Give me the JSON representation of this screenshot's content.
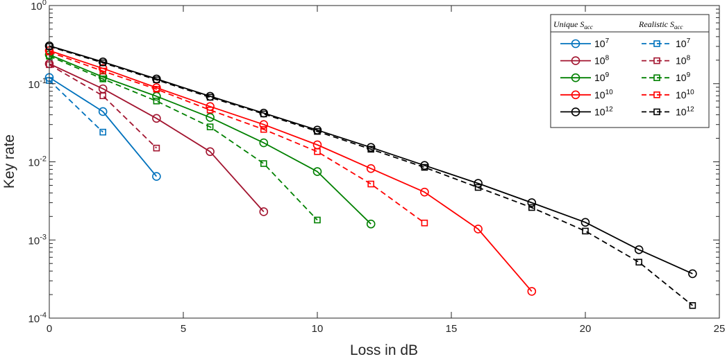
{
  "chart_data": {
    "type": "line",
    "title": "",
    "xlabel": "Loss in dB",
    "ylabel": "Key rate",
    "xscale": "linear",
    "yscale": "log",
    "xlim": [
      0,
      25
    ],
    "ylim": [
      0.0001,
      1
    ],
    "xticks": [
      0,
      5,
      10,
      15,
      20,
      25
    ],
    "xtick_labels": [
      "0",
      "5",
      "10",
      "15",
      "20",
      "25"
    ],
    "yticks": [
      {
        "value": 1,
        "mantissa": "10",
        "exp": "0"
      },
      {
        "value": 0.1,
        "mantissa": "10",
        "exp": "-1"
      },
      {
        "value": 0.01,
        "mantissa": "10",
        "exp": "-2"
      },
      {
        "value": 0.001,
        "mantissa": "10",
        "exp": "-3"
      },
      {
        "value": 0.0001,
        "mantissa": "10",
        "exp": "-4"
      }
    ],
    "grid": false,
    "legend": {
      "placement": "top-right",
      "header_left": {
        "text": "Unique ",
        "var": "S",
        "sub": "acc"
      },
      "header_right": {
        "text": "Realistic ",
        "var": "S",
        "sub": "acc"
      }
    },
    "series": [
      {
        "name": "10^7 (Unique)",
        "base": "10",
        "exp": "7",
        "group": "unique",
        "color": "#0072BD",
        "linestyle": "solid",
        "marker": "circle",
        "x": [
          0,
          2,
          4
        ],
        "y": [
          0.12,
          0.044,
          0.0065
        ]
      },
      {
        "name": "10^7 (Realistic)",
        "base": "10",
        "exp": "7",
        "group": "realistic",
        "color": "#0072BD",
        "linestyle": "dashed",
        "marker": "square",
        "x": [
          0,
          2
        ],
        "y": [
          0.11,
          0.024
        ]
      },
      {
        "name": "10^8 (Unique)",
        "base": "10",
        "exp": "8",
        "group": "unique",
        "color": "#A2142F",
        "linestyle": "solid",
        "marker": "circle",
        "x": [
          0,
          2,
          4,
          6,
          8
        ],
        "y": [
          0.18,
          0.086,
          0.036,
          0.0135,
          0.0023
        ]
      },
      {
        "name": "10^8 (Realistic)",
        "base": "10",
        "exp": "8",
        "group": "realistic",
        "color": "#A2142F",
        "linestyle": "dashed",
        "marker": "square",
        "x": [
          0,
          2,
          4
        ],
        "y": [
          0.175,
          0.07,
          0.015
        ]
      },
      {
        "name": "10^9 (Unique)",
        "base": "10",
        "exp": "9",
        "group": "unique",
        "color": "#008000",
        "linestyle": "solid",
        "marker": "circle",
        "x": [
          0,
          2,
          4,
          6,
          8,
          10,
          12
        ],
        "y": [
          0.235,
          0.122,
          0.069,
          0.037,
          0.0175,
          0.0075,
          0.0016
        ]
      },
      {
        "name": "10^9 (Realistic)",
        "base": "10",
        "exp": "9",
        "group": "realistic",
        "color": "#008000",
        "linestyle": "dashed",
        "marker": "square",
        "x": [
          0,
          2,
          4,
          6,
          8,
          10
        ],
        "y": [
          0.225,
          0.115,
          0.06,
          0.028,
          0.0095,
          0.0018
        ]
      },
      {
        "name": "10^10 (Unique)",
        "base": "10",
        "exp": "10",
        "group": "unique",
        "color": "#FF0000",
        "linestyle": "solid",
        "marker": "circle",
        "x": [
          0,
          2,
          4,
          6,
          8,
          10,
          12,
          14,
          16,
          18
        ],
        "y": [
          0.265,
          0.157,
          0.089,
          0.051,
          0.03,
          0.0165,
          0.0082,
          0.0041,
          0.00138,
          0.00022
        ]
      },
      {
        "name": "10^10 (Realistic)",
        "base": "10",
        "exp": "10",
        "group": "realistic",
        "color": "#FF0000",
        "linestyle": "dashed",
        "marker": "square",
        "x": [
          0,
          2,
          4,
          6,
          8,
          10,
          12,
          14
        ],
        "y": [
          0.255,
          0.145,
          0.085,
          0.046,
          0.026,
          0.0135,
          0.0052,
          0.00165
        ]
      },
      {
        "name": "10^12 (Unique)",
        "base": "10",
        "exp": "12",
        "group": "unique",
        "color": "#000000",
        "linestyle": "solid",
        "marker": "circle",
        "x": [
          0,
          2,
          4,
          6,
          8,
          10,
          12,
          14,
          16,
          18,
          20,
          22,
          24
        ],
        "y": [
          0.305,
          0.19,
          0.115,
          0.069,
          0.042,
          0.0255,
          0.0153,
          0.009,
          0.0053,
          0.003,
          0.00168,
          0.00075,
          0.00037
        ]
      },
      {
        "name": "10^12 (Realistic)",
        "base": "10",
        "exp": "12",
        "group": "realistic",
        "color": "#000000",
        "linestyle": "dashed",
        "marker": "square",
        "x": [
          0,
          2,
          4,
          6,
          8,
          10,
          12,
          14,
          16,
          18,
          20,
          22,
          24
        ],
        "y": [
          0.3,
          0.185,
          0.112,
          0.067,
          0.041,
          0.0245,
          0.0145,
          0.0085,
          0.0047,
          0.0026,
          0.0013,
          0.00052,
          0.000145
        ]
      }
    ]
  }
}
